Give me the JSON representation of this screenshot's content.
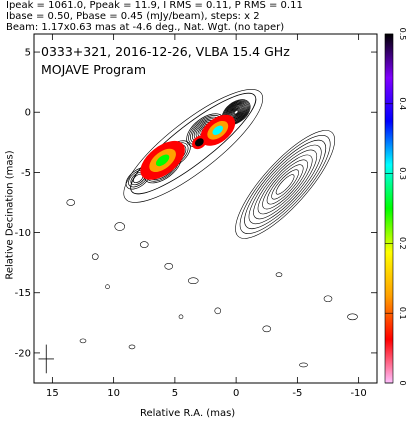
{
  "header": {
    "line1": "Ipeak = 1061.0, Ppeak = 11.9, I RMS = 0.11, P RMS = 0.11",
    "line2": "Ibase = 0.50, Pbase = 0.45 (mJy/beam), steps: x 2",
    "line3": "Beam: 1.17x0.63 mas at -4.6 deg., Nat. Wgt. (no taper)"
  },
  "chart_data": {
    "type": "contour",
    "title": "0333+321, 2016-12-26, VLBA 15.4 GHz",
    "subtitle": "MOJAVE Program",
    "xlabel": "Relative R.A. (mas)",
    "ylabel": "Relative Decination (mas)",
    "xlim": [
      16.5,
      -11.5
    ],
    "ylim": [
      -22.5,
      6.5
    ],
    "x_ticks": [
      15,
      10,
      5,
      0,
      -5,
      -10
    ],
    "y_ticks": [
      5,
      0,
      -5,
      -10,
      -15,
      -20
    ],
    "colorbar": {
      "label_side": "right",
      "range": [
        0,
        0.5
      ],
      "ticks": [
        0,
        0.1,
        0.2,
        0.3,
        0.4,
        0.5
      ],
      "colors": [
        "#ffc0ff",
        "#ff0000",
        "#ffa000",
        "#ffff00",
        "#00ff00",
        "#00ffff",
        "#0000ff",
        "#8000ff",
        "#000000"
      ]
    },
    "core": {
      "x": 0.0,
      "y": 0.0
    },
    "total_intensity_components": [
      {
        "x": 0.0,
        "y": 0.0,
        "level": "peak"
      },
      {
        "x": 2.5,
        "y": -1.5,
        "level": "high"
      },
      {
        "x": 6.0,
        "y": -4.5,
        "level": "high"
      },
      {
        "x": 5.0,
        "y": -3.5,
        "level": "medium"
      },
      {
        "x": 8.0,
        "y": -5.5,
        "level": "low"
      }
    ],
    "polarized_components": [
      {
        "x": 6.0,
        "y": -4.0,
        "fractional_pol": 0.05
      },
      {
        "x": 1.5,
        "y": -1.5,
        "fractional_pol": 0.08
      },
      {
        "x": 3.0,
        "y": -2.5,
        "fractional_pol": 0.45
      }
    ],
    "polarization_contour_region": {
      "x_range": [
        -9.5,
        1.5
      ],
      "y_range": [
        -11,
        -1
      ]
    },
    "beam": {
      "major": 1.17,
      "minor": 0.63,
      "pa": -4.6,
      "x": 15.5,
      "y": -20.5
    }
  }
}
